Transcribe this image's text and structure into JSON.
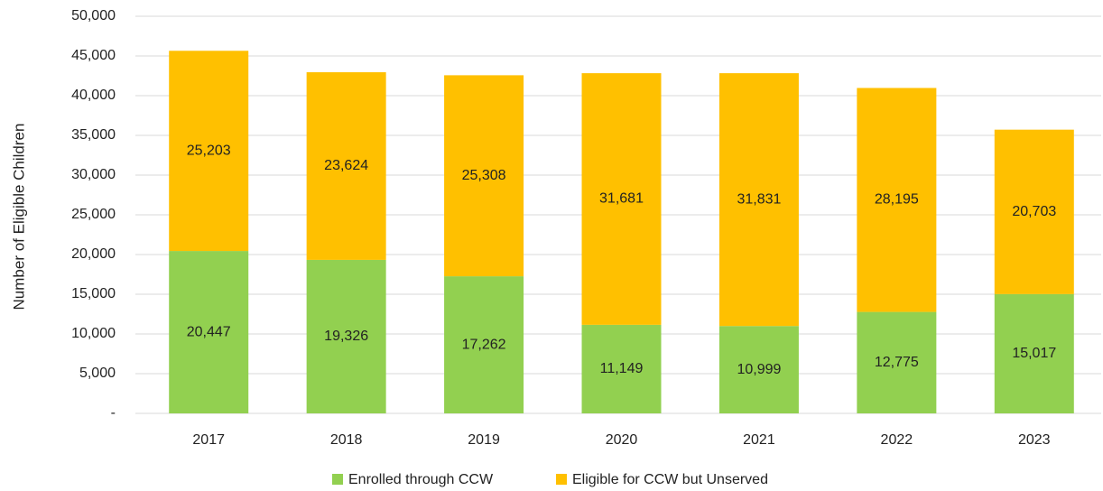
{
  "chart_data": {
    "type": "stacked_bar",
    "y_label": "Number of Eligible Children",
    "categories": [
      "2017",
      "2018",
      "2019",
      "2020",
      "2021",
      "2022",
      "2023"
    ],
    "series": [
      {
        "name": "Enrolled through CCW",
        "color": "#92d050",
        "values": [
          20447,
          19326,
          17262,
          11149,
          10999,
          12775,
          15017
        ],
        "value_labels": [
          "20,447",
          "19,326",
          "17,262",
          "11,149",
          "10,999",
          "12,775",
          "15,017"
        ]
      },
      {
        "name": "Eligible for CCW but Unserved",
        "color": "#ffc000",
        "values": [
          25203,
          23624,
          25308,
          31681,
          31831,
          28195,
          20703
        ],
        "value_labels": [
          "25,203",
          "23,624",
          "25,308",
          "31,681",
          "31,831",
          "28,195",
          "20,703"
        ]
      }
    ],
    "ylim": [
      0,
      50000
    ],
    "yticks": [
      {
        "value": 0,
        "label": "-"
      },
      {
        "value": 5000,
        "label": "5,000"
      },
      {
        "value": 10000,
        "label": "10,000"
      },
      {
        "value": 15000,
        "label": "15,000"
      },
      {
        "value": 20000,
        "label": "20,000"
      },
      {
        "value": 25000,
        "label": "25,000"
      },
      {
        "value": 30000,
        "label": "30,000"
      },
      {
        "value": 35000,
        "label": "35,000"
      },
      {
        "value": 40000,
        "label": "40,000"
      },
      {
        "value": 45000,
        "label": "45,000"
      },
      {
        "value": 50000,
        "label": "50,000"
      }
    ],
    "grid": true,
    "legend": "bottom"
  }
}
